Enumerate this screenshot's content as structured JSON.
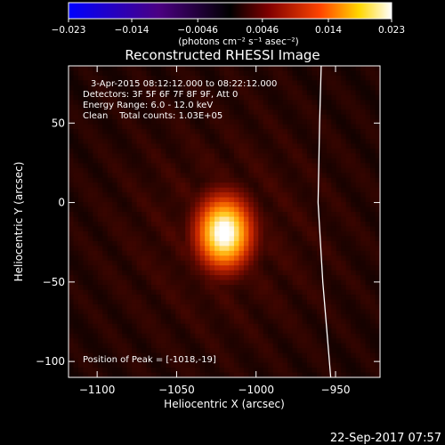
{
  "chart_data": {
    "type": "heatmap",
    "title": "Reconstructed RHESSI Image",
    "xlabel": "Heliocentric X (arcsec)",
    "ylabel": "Heliocentric Y (arcsec)",
    "xlim": [
      -1118,
      -922
    ],
    "ylim": [
      -110,
      86
    ],
    "x_ticks": [
      -1100,
      -1050,
      -1000,
      -950
    ],
    "x_tick_labels": [
      "−1100",
      "−1050",
      "−1000",
      "−950"
    ],
    "y_ticks": [
      -100,
      -50,
      0,
      50
    ],
    "y_tick_labels": [
      "−100",
      "−50",
      "0",
      "50"
    ],
    "colorbar": {
      "range": [
        -0.023,
        0.023
      ],
      "ticks": [
        -0.023,
        -0.014,
        -0.0046,
        0.0046,
        0.014,
        0.023
      ],
      "tick_labels": [
        "−0.023",
        "−0.014",
        "−0.0046",
        "0.0046",
        "0.014",
        "0.023"
      ],
      "units_label": "(photons cm⁻² s⁻¹ asec⁻²)",
      "colors": [
        "#0000ff",
        "#4b0082",
        "#000000",
        "#800000",
        "#ff4500",
        "#ffd700",
        "#ffffff"
      ]
    },
    "annotations": {
      "time_range": "3-Apr-2015 08:12:12.000 to 08:22:12.000",
      "detectors": "Detectors: 3F 5F 6F 7F 8F 9F, Att 0",
      "energy_range": "Energy Range: 6.0 - 12.0 keV",
      "method_counts": "Clean    Total counts: 1.03E+05",
      "peak": "Position of Peak = [-1018,-19]"
    },
    "peak_position": [
      -1018,
      -19
    ],
    "source": {
      "center": [
        -1020,
        -19
      ],
      "sigma_x_arcsec": 13,
      "sigma_y_arcsec": 17,
      "peak_value": 0.023
    },
    "limb_curve": [
      [
        -959,
        86
      ],
      [
        -960,
        50
      ],
      [
        -961,
        0
      ],
      [
        -958,
        -50
      ],
      [
        -953,
        -110
      ]
    ],
    "timestamp": "22-Sep-2017 07:57"
  },
  "colors": {
    "background": "#000000",
    "text": "#ffffff"
  }
}
